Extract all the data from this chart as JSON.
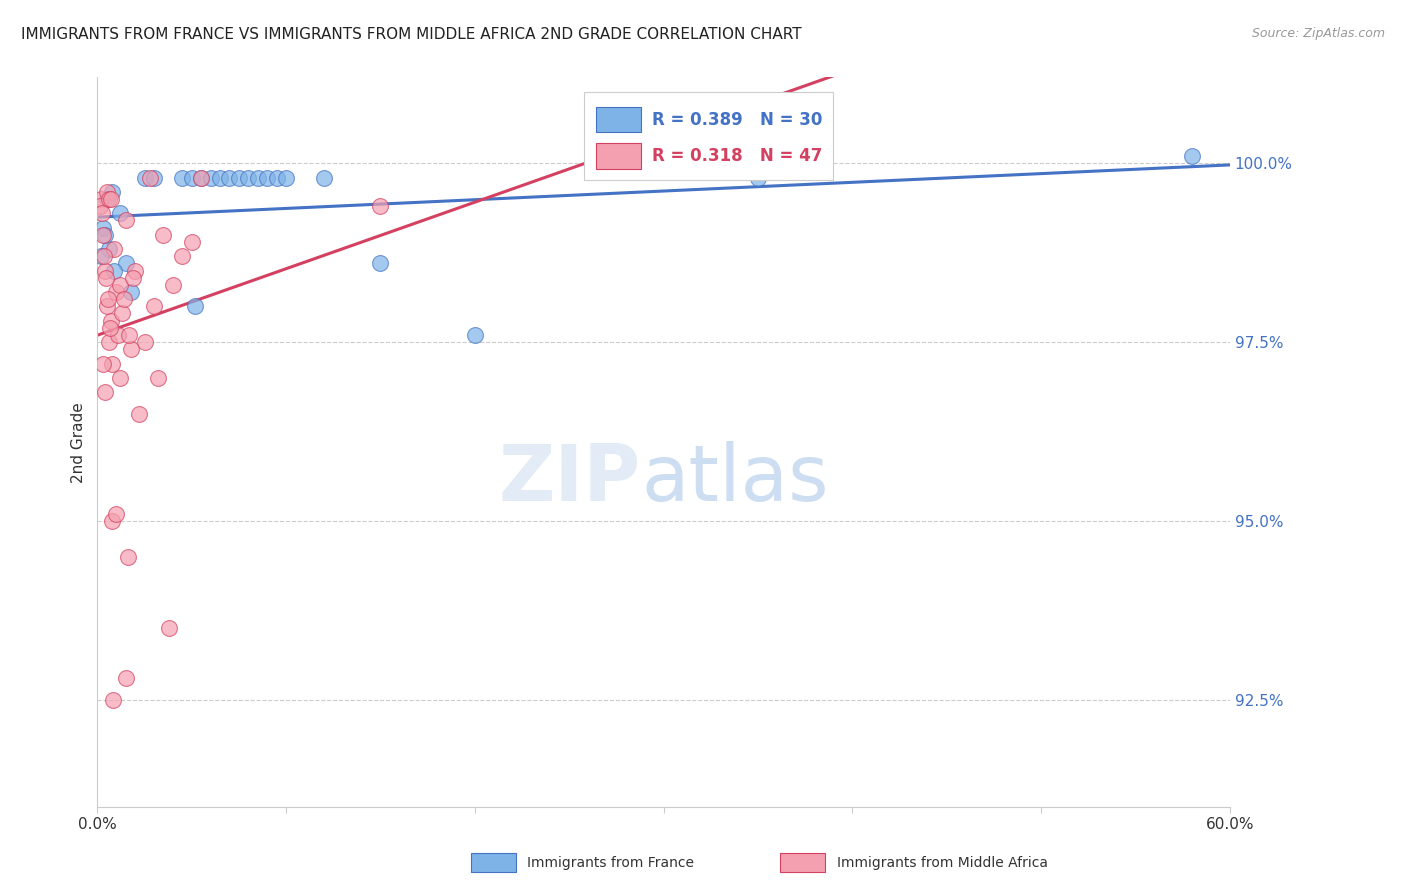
{
  "title": "IMMIGRANTS FROM FRANCE VS IMMIGRANTS FROM MIDDLE AFRICA 2ND GRADE CORRELATION CHART",
  "source": "Source: ZipAtlas.com",
  "ylabel": "2nd Grade",
  "ytick_values": [
    92.5,
    95.0,
    97.5,
    100.0
  ],
  "xmin": 0.0,
  "xmax": 60.0,
  "ymin": 91.0,
  "ymax": 101.2,
  "legend_blue": "Immigrants from France",
  "legend_pink": "Immigrants from Middle Africa",
  "R_blue": 0.389,
  "N_blue": 30,
  "R_pink": 0.318,
  "N_pink": 47,
  "color_blue": "#7EB3E8",
  "color_pink": "#F4A0B0",
  "trendline_blue": "#4472C4",
  "trendline_pink": "#D44060",
  "blue_scatter_x": [
    0.5,
    0.8,
    1.2,
    0.3,
    0.6,
    1.5,
    0.4,
    0.9,
    1.8,
    0.2,
    2.5,
    3.0,
    4.5,
    5.0,
    5.5,
    6.0,
    6.5,
    7.0,
    7.5,
    8.0,
    5.2,
    8.5,
    9.0,
    9.5,
    10.0,
    12.0,
    15.0,
    20.0,
    35.0,
    58.0
  ],
  "blue_scatter_y": [
    99.5,
    99.6,
    99.3,
    99.1,
    98.8,
    98.6,
    99.0,
    98.5,
    98.2,
    98.7,
    99.8,
    99.8,
    99.8,
    99.8,
    99.8,
    99.8,
    99.8,
    99.8,
    99.8,
    99.8,
    98.0,
    99.8,
    99.8,
    99.8,
    99.8,
    99.8,
    98.6,
    97.6,
    99.8,
    100.1
  ],
  "pink_scatter_x": [
    0.2,
    0.3,
    0.4,
    0.5,
    0.6,
    0.7,
    0.8,
    0.9,
    1.0,
    1.1,
    1.2,
    1.3,
    1.4,
    1.5,
    0.15,
    0.25,
    0.35,
    0.45,
    0.55,
    0.65,
    2.0,
    2.5,
    3.0,
    3.5,
    4.0,
    4.5,
    5.0,
    0.3,
    0.4,
    1.8,
    2.2,
    3.2,
    0.8,
    1.0,
    1.2,
    0.5,
    0.6,
    0.7,
    2.8,
    5.5,
    3.8,
    1.5,
    1.6,
    1.7,
    1.9,
    15.0,
    0.85
  ],
  "pink_scatter_y": [
    99.5,
    99.0,
    98.5,
    98.0,
    97.5,
    97.8,
    97.2,
    98.8,
    98.2,
    97.6,
    98.3,
    97.9,
    98.1,
    99.2,
    99.4,
    99.3,
    98.7,
    98.4,
    98.1,
    97.7,
    98.5,
    97.5,
    98.0,
    99.0,
    98.3,
    98.7,
    98.9,
    97.2,
    96.8,
    97.4,
    96.5,
    97.0,
    95.0,
    95.1,
    97.0,
    99.6,
    99.5,
    99.5,
    99.8,
    99.8,
    93.5,
    92.8,
    94.5,
    97.6,
    98.4,
    99.4,
    92.5
  ]
}
